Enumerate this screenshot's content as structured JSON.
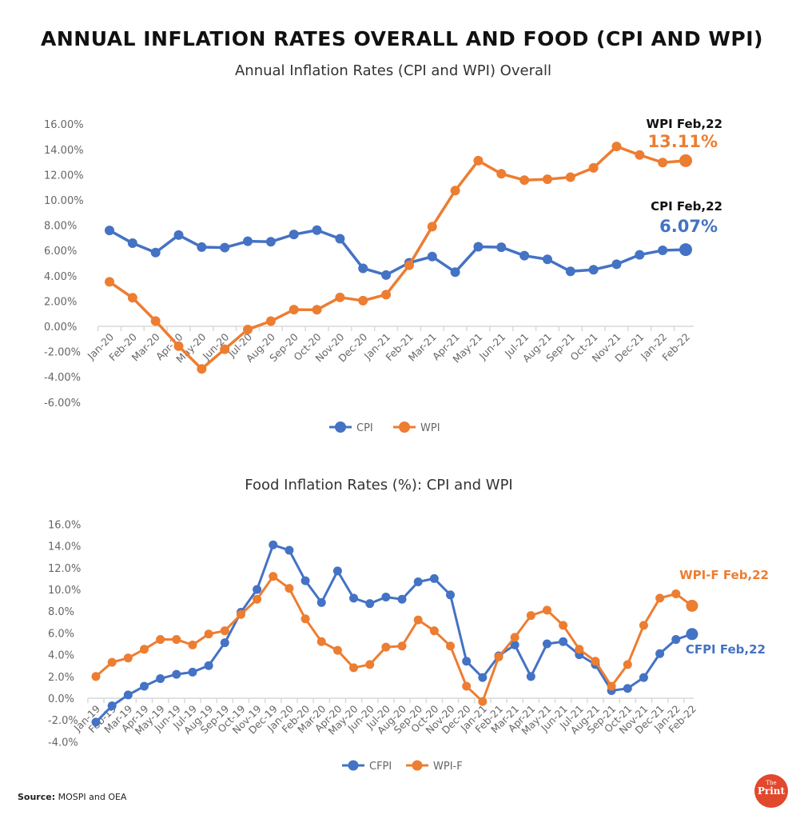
{
  "title": "ANNUAL INFLATION RATES OVERALL AND FOOD (CPI AND WPI)",
  "source_label": "Source:",
  "source_text": "MOSPI and OEA",
  "logo": {
    "text_small": "The",
    "text_large": "Print",
    "color": "#e2482c"
  },
  "chart_data": [
    {
      "type": "line",
      "title": "Annual Inflation Rates (CPI and WPI) Overall",
      "x": [
        "Jan-20",
        "Feb-20",
        "Mar-20",
        "Apr-20",
        "May-20",
        "Jun-20",
        "Jul-20",
        "Aug-20",
        "Sep-20",
        "Oct-20",
        "Nov-20",
        "Dec-20",
        "Jan-21",
        "Feb-21",
        "Mar-21",
        "Apr-21",
        "May-21",
        "Jun-21",
        "Jul-21",
        "Aug-21",
        "Sep-21",
        "Oct-21",
        "Nov-21",
        "Dec-21",
        "Jan-22",
        "Feb-22"
      ],
      "ylim": [
        -6,
        16
      ],
      "yticks": [
        "-6.00%",
        "-4.00%",
        "-2.00%",
        "0.00%",
        "2.00%",
        "4.00%",
        "6.00%",
        "8.00%",
        "10.00%",
        "12.00%",
        "14.00%",
        "16.00%"
      ],
      "grid": false,
      "legend": "bottom",
      "series": [
        {
          "name": "CPI",
          "color": "#4472c4",
          "values": [
            7.59,
            6.58,
            5.84,
            7.22,
            6.27,
            6.23,
            6.73,
            6.69,
            7.27,
            7.61,
            6.93,
            4.59,
            4.06,
            5.03,
            5.52,
            4.29,
            6.3,
            6.26,
            5.59,
            5.3,
            4.35,
            4.48,
            4.91,
            5.66,
            6.01,
            6.07
          ]
        },
        {
          "name": "WPI",
          "color": "#ed7d31",
          "values": [
            3.52,
            2.26,
            0.42,
            -1.57,
            -3.37,
            -1.81,
            -0.25,
            0.41,
            1.32,
            1.31,
            2.29,
            2.03,
            2.51,
            4.83,
            7.89,
            10.74,
            13.11,
            12.07,
            11.57,
            11.64,
            11.8,
            12.54,
            14.23,
            13.56,
            12.96,
            13.11
          ]
        }
      ],
      "annotations": [
        {
          "label": "WPI Feb,22",
          "value": "13.11%",
          "color": "#ed7d31"
        },
        {
          "label": "CPI Feb,22",
          "value": "6.07%",
          "color": "#4472c4"
        }
      ]
    },
    {
      "type": "line",
      "title": "Food Inflation Rates (%): CPI and WPI",
      "x": [
        "Jan-19",
        "Feb-19",
        "Mar-19",
        "Apr-19",
        "May-19",
        "Jun-19",
        "Jul-19",
        "Aug-19",
        "Sep-19",
        "Oct-19",
        "Nov-19",
        "Dec-19",
        "Jan-20",
        "Feb-20",
        "Mar-20",
        "Apr-20",
        "May-20",
        "Jun-20",
        "Jul-20",
        "Aug-20",
        "Sep-20",
        "Oct-20",
        "Nov-20",
        "Dec-20",
        "Jan-21",
        "Feb-21",
        "Mar-21",
        "Apr-21",
        "May-21",
        "Jun-21",
        "Jul-21",
        "Aug-21",
        "Sep-21",
        "Oct-21",
        "Nov-21",
        "Dec-21",
        "Jan-22",
        "Feb-22"
      ],
      "ylim": [
        -4,
        16
      ],
      "yticks": [
        "-4.0%",
        "-2.0%",
        "0.0%",
        "2.0%",
        "4.0%",
        "6.0%",
        "8.0%",
        "10.0%",
        "12.0%",
        "14.0%",
        "16.0%"
      ],
      "grid": false,
      "legend": "bottom",
      "series": [
        {
          "name": "CFPI",
          "color": "#4472c4",
          "values": [
            -2.2,
            -0.7,
            0.3,
            1.1,
            1.8,
            2.2,
            2.4,
            3.0,
            5.1,
            7.9,
            10.0,
            14.1,
            13.6,
            10.8,
            8.8,
            11.7,
            9.2,
            8.7,
            9.3,
            9.1,
            10.7,
            11.0,
            9.5,
            3.4,
            1.9,
            3.9,
            4.9,
            2.0,
            5.0,
            5.2,
            4.0,
            3.1,
            0.7,
            0.9,
            1.9,
            4.1,
            5.4,
            5.9
          ]
        },
        {
          "name": "WPI-F",
          "color": "#ed7d31",
          "values": [
            2.0,
            3.3,
            3.7,
            4.5,
            5.4,
            5.4,
            4.9,
            5.9,
            6.2,
            7.7,
            9.1,
            11.2,
            10.1,
            7.3,
            5.2,
            4.4,
            2.8,
            3.1,
            4.7,
            4.8,
            7.2,
            6.2,
            4.8,
            1.1,
            -0.3,
            3.8,
            5.6,
            7.6,
            8.1,
            6.7,
            4.5,
            3.4,
            1.1,
            3.1,
            6.7,
            9.2,
            9.6,
            8.5
          ]
        }
      ],
      "annotations": [
        {
          "label": "WPI-F Feb,22",
          "color": "#ed7d31"
        },
        {
          "label": "CFPI Feb,22",
          "color": "#4472c4"
        }
      ]
    }
  ]
}
